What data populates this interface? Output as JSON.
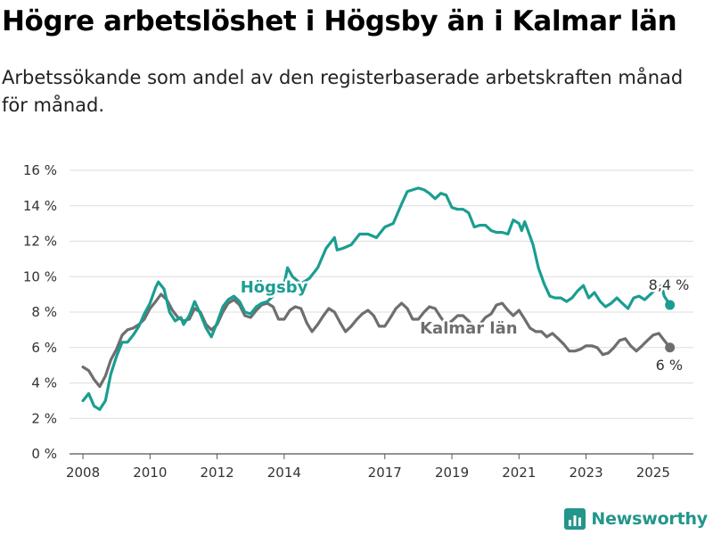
{
  "header": {
    "title": "Högre arbetslöshet i Högsby än i Kalmar län",
    "subtitle": "Arbetssökande som andel av den registerbaserade arbetskraften månad för månad."
  },
  "brand": {
    "name": "Newsworthy",
    "icon": "newsworthy-logo-icon",
    "color": "#22968b"
  },
  "chart_data": {
    "type": "line",
    "title": "Högre arbetslöshet i Högsby än i Kalmar län",
    "subtitle": "Arbetssökande som andel av den registerbaserade arbetskraften månad för månad.",
    "xlabel": "",
    "ylabel": "",
    "ylim": [
      0,
      16
    ],
    "xlim": [
      2007.6,
      2026.2
    ],
    "grid": true,
    "legend": "inline labels",
    "y_ticks": [
      {
        "value": 0,
        "label": "0 %"
      },
      {
        "value": 2,
        "label": "2 %"
      },
      {
        "value": 4,
        "label": "4 %"
      },
      {
        "value": 6,
        "label": "6 %"
      },
      {
        "value": 8,
        "label": "8 %"
      },
      {
        "value": 10,
        "label": "10 %"
      },
      {
        "value": 12,
        "label": "12 %"
      },
      {
        "value": 14,
        "label": "14 %"
      },
      {
        "value": 16,
        "label": "16 %"
      }
    ],
    "x_ticks": [
      {
        "value": 2008,
        "label": "2008"
      },
      {
        "value": 2010,
        "label": "2010"
      },
      {
        "value": 2012,
        "label": "2012"
      },
      {
        "value": 2014,
        "label": "2014"
      },
      {
        "value": 2017,
        "label": "2017"
      },
      {
        "value": 2019,
        "label": "2019"
      },
      {
        "value": 2021,
        "label": "2021"
      },
      {
        "value": 2023,
        "label": "2023"
      },
      {
        "value": 2025,
        "label": "2025"
      }
    ],
    "series": [
      {
        "name": "Högsby",
        "color": "#1a9e91",
        "end_label": "8,4 %",
        "points": [
          [
            2008.0,
            3.0
          ],
          [
            2008.17,
            3.4
          ],
          [
            2008.33,
            2.7
          ],
          [
            2008.5,
            2.5
          ],
          [
            2008.67,
            3.0
          ],
          [
            2008.83,
            4.5
          ],
          [
            2009.0,
            5.5
          ],
          [
            2009.17,
            6.3
          ],
          [
            2009.33,
            6.3
          ],
          [
            2009.5,
            6.7
          ],
          [
            2009.67,
            7.2
          ],
          [
            2009.83,
            7.9
          ],
          [
            2010.0,
            8.5
          ],
          [
            2010.17,
            9.4
          ],
          [
            2010.25,
            9.7
          ],
          [
            2010.42,
            9.3
          ],
          [
            2010.58,
            8.0
          ],
          [
            2010.75,
            7.5
          ],
          [
            2010.92,
            7.7
          ],
          [
            2011.0,
            7.3
          ],
          [
            2011.17,
            7.8
          ],
          [
            2011.33,
            8.6
          ],
          [
            2011.5,
            7.9
          ],
          [
            2011.67,
            7.1
          ],
          [
            2011.83,
            6.6
          ],
          [
            2012.0,
            7.4
          ],
          [
            2012.17,
            8.3
          ],
          [
            2012.33,
            8.7
          ],
          [
            2012.5,
            8.9
          ],
          [
            2012.67,
            8.6
          ],
          [
            2012.83,
            8.0
          ],
          [
            2013.0,
            7.9
          ],
          [
            2013.17,
            8.3
          ],
          [
            2013.33,
            8.5
          ],
          [
            2013.5,
            8.6
          ],
          [
            2013.67,
            8.9
          ],
          [
            2013.83,
            9.2
          ],
          [
            2014.0,
            9.6
          ],
          [
            2014.1,
            10.5
          ],
          [
            2014.25,
            10.0
          ],
          [
            2014.5,
            9.6
          ],
          [
            2014.75,
            9.9
          ],
          [
            2015.0,
            10.5
          ],
          [
            2015.25,
            11.6
          ],
          [
            2015.5,
            12.2
          ],
          [
            2015.58,
            11.5
          ],
          [
            2015.75,
            11.6
          ],
          [
            2016.0,
            11.8
          ],
          [
            2016.25,
            12.4
          ],
          [
            2016.5,
            12.4
          ],
          [
            2016.75,
            12.2
          ],
          [
            2017.0,
            12.8
          ],
          [
            2017.25,
            13.0
          ],
          [
            2017.5,
            14.1
          ],
          [
            2017.67,
            14.8
          ],
          [
            2017.83,
            14.9
          ],
          [
            2018.0,
            15.0
          ],
          [
            2018.17,
            14.9
          ],
          [
            2018.33,
            14.7
          ],
          [
            2018.5,
            14.4
          ],
          [
            2018.67,
            14.7
          ],
          [
            2018.83,
            14.6
          ],
          [
            2019.0,
            13.9
          ],
          [
            2019.17,
            13.8
          ],
          [
            2019.33,
            13.8
          ],
          [
            2019.5,
            13.6
          ],
          [
            2019.67,
            12.8
          ],
          [
            2019.83,
            12.9
          ],
          [
            2020.0,
            12.9
          ],
          [
            2020.17,
            12.6
          ],
          [
            2020.33,
            12.5
          ],
          [
            2020.5,
            12.5
          ],
          [
            2020.67,
            12.4
          ],
          [
            2020.83,
            13.2
          ],
          [
            2021.0,
            13.0
          ],
          [
            2021.08,
            12.6
          ],
          [
            2021.17,
            13.1
          ],
          [
            2021.25,
            12.7
          ],
          [
            2021.42,
            11.8
          ],
          [
            2021.58,
            10.5
          ],
          [
            2021.75,
            9.6
          ],
          [
            2021.92,
            8.9
          ],
          [
            2022.08,
            8.8
          ],
          [
            2022.25,
            8.8
          ],
          [
            2022.42,
            8.6
          ],
          [
            2022.58,
            8.8
          ],
          [
            2022.75,
            9.2
          ],
          [
            2022.92,
            9.5
          ],
          [
            2023.08,
            8.8
          ],
          [
            2023.25,
            9.1
          ],
          [
            2023.42,
            8.6
          ],
          [
            2023.58,
            8.3
          ],
          [
            2023.75,
            8.5
          ],
          [
            2023.92,
            8.8
          ],
          [
            2024.08,
            8.5
          ],
          [
            2024.25,
            8.2
          ],
          [
            2024.42,
            8.8
          ],
          [
            2024.58,
            8.9
          ],
          [
            2024.75,
            8.7
          ],
          [
            2024.92,
            9.0
          ],
          [
            2025.08,
            9.3
          ],
          [
            2025.25,
            9.5
          ],
          [
            2025.33,
            8.9
          ],
          [
            2025.5,
            8.4
          ]
        ]
      },
      {
        "name": "Kalmar län",
        "color": "#6e6e6e",
        "end_label": "6 %",
        "points": [
          [
            2008.0,
            4.9
          ],
          [
            2008.17,
            4.7
          ],
          [
            2008.33,
            4.2
          ],
          [
            2008.5,
            3.8
          ],
          [
            2008.67,
            4.4
          ],
          [
            2008.83,
            5.3
          ],
          [
            2009.0,
            5.9
          ],
          [
            2009.17,
            6.7
          ],
          [
            2009.33,
            7.0
          ],
          [
            2009.5,
            7.1
          ],
          [
            2009.67,
            7.3
          ],
          [
            2009.83,
            7.6
          ],
          [
            2010.0,
            8.2
          ],
          [
            2010.17,
            8.6
          ],
          [
            2010.33,
            9.0
          ],
          [
            2010.5,
            8.7
          ],
          [
            2010.67,
            8.1
          ],
          [
            2010.83,
            7.7
          ],
          [
            2011.0,
            7.5
          ],
          [
            2011.17,
            7.6
          ],
          [
            2011.33,
            8.2
          ],
          [
            2011.5,
            8.0
          ],
          [
            2011.67,
            7.3
          ],
          [
            2011.83,
            7.0
          ],
          [
            2012.0,
            7.3
          ],
          [
            2012.17,
            8.0
          ],
          [
            2012.33,
            8.5
          ],
          [
            2012.5,
            8.7
          ],
          [
            2012.67,
            8.4
          ],
          [
            2012.83,
            7.8
          ],
          [
            2013.0,
            7.7
          ],
          [
            2013.17,
            8.1
          ],
          [
            2013.33,
            8.4
          ],
          [
            2013.5,
            8.5
          ],
          [
            2013.67,
            8.3
          ],
          [
            2013.83,
            7.6
          ],
          [
            2014.0,
            7.6
          ],
          [
            2014.17,
            8.1
          ],
          [
            2014.33,
            8.3
          ],
          [
            2014.5,
            8.2
          ],
          [
            2014.67,
            7.4
          ],
          [
            2014.83,
            6.9
          ],
          [
            2015.0,
            7.3
          ],
          [
            2015.17,
            7.8
          ],
          [
            2015.33,
            8.2
          ],
          [
            2015.5,
            8.0
          ],
          [
            2015.67,
            7.4
          ],
          [
            2015.83,
            6.9
          ],
          [
            2016.0,
            7.2
          ],
          [
            2016.17,
            7.6
          ],
          [
            2016.33,
            7.9
          ],
          [
            2016.5,
            8.1
          ],
          [
            2016.67,
            7.8
          ],
          [
            2016.83,
            7.2
          ],
          [
            2017.0,
            7.2
          ],
          [
            2017.17,
            7.7
          ],
          [
            2017.33,
            8.2
          ],
          [
            2017.5,
            8.5
          ],
          [
            2017.67,
            8.2
          ],
          [
            2017.83,
            7.6
          ],
          [
            2018.0,
            7.6
          ],
          [
            2018.17,
            8.0
          ],
          [
            2018.33,
            8.3
          ],
          [
            2018.5,
            8.2
          ],
          [
            2018.67,
            7.7
          ],
          [
            2018.83,
            7.3
          ],
          [
            2019.0,
            7.5
          ],
          [
            2019.17,
            7.8
          ],
          [
            2019.33,
            7.8
          ],
          [
            2019.5,
            7.5
          ],
          [
            2019.67,
            7.1
          ],
          [
            2019.83,
            7.3
          ],
          [
            2020.0,
            7.7
          ],
          [
            2020.17,
            7.9
          ],
          [
            2020.33,
            8.4
          ],
          [
            2020.5,
            8.5
          ],
          [
            2020.67,
            8.1
          ],
          [
            2020.83,
            7.8
          ],
          [
            2021.0,
            8.1
          ],
          [
            2021.17,
            7.6
          ],
          [
            2021.33,
            7.1
          ],
          [
            2021.5,
            6.9
          ],
          [
            2021.67,
            6.9
          ],
          [
            2021.83,
            6.6
          ],
          [
            2022.0,
            6.8
          ],
          [
            2022.17,
            6.5
          ],
          [
            2022.33,
            6.2
          ],
          [
            2022.5,
            5.8
          ],
          [
            2022.67,
            5.8
          ],
          [
            2022.83,
            5.9
          ],
          [
            2023.0,
            6.1
          ],
          [
            2023.17,
            6.1
          ],
          [
            2023.33,
            6.0
          ],
          [
            2023.5,
            5.6
          ],
          [
            2023.67,
            5.7
          ],
          [
            2023.83,
            6.0
          ],
          [
            2024.0,
            6.4
          ],
          [
            2024.17,
            6.5
          ],
          [
            2024.33,
            6.1
          ],
          [
            2024.5,
            5.8
          ],
          [
            2024.67,
            6.1
          ],
          [
            2024.83,
            6.4
          ],
          [
            2025.0,
            6.7
          ],
          [
            2025.17,
            6.8
          ],
          [
            2025.33,
            6.4
          ],
          [
            2025.5,
            6.0
          ]
        ]
      }
    ]
  }
}
